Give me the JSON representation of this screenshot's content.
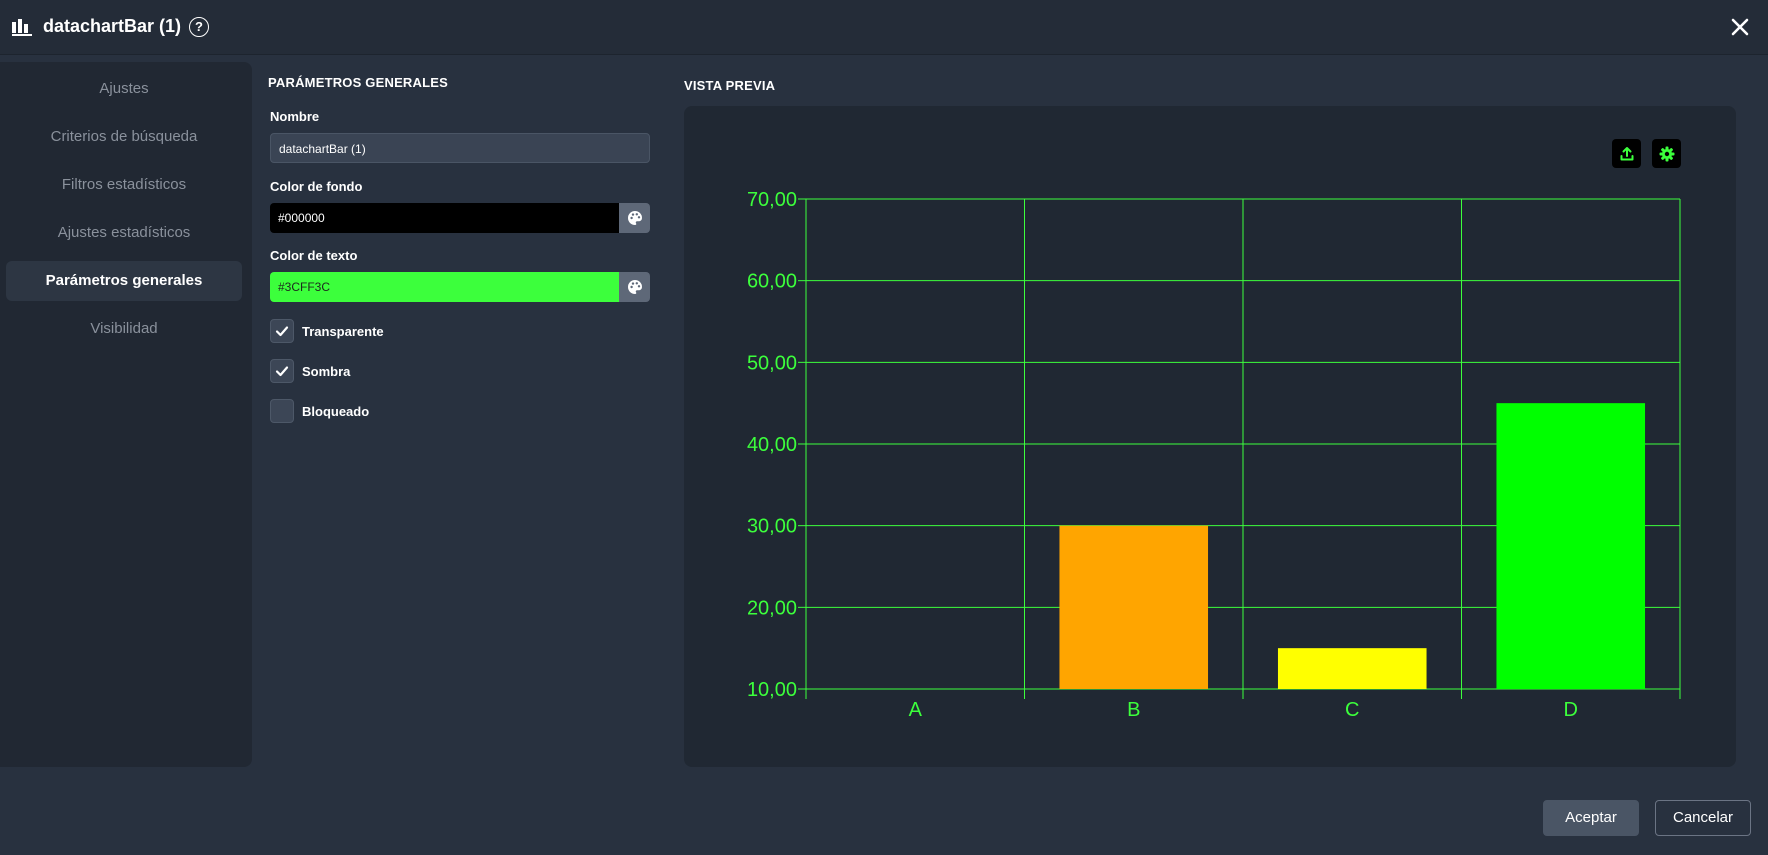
{
  "header": {
    "title": "datachartBar (1)",
    "help_glyph": "?"
  },
  "sidebar": {
    "items": [
      {
        "label": "Ajustes"
      },
      {
        "label": "Criterios de búsqueda"
      },
      {
        "label": "Filtros estadísticos"
      },
      {
        "label": "Ajustes estadísticos"
      },
      {
        "label": "Parámetros generales",
        "active": true
      },
      {
        "label": "Visibilidad"
      }
    ]
  },
  "form": {
    "section_title": "PARÁMETROS GENERALES",
    "name_label": "Nombre",
    "name_value": "datachartBar (1)",
    "bg_color_label": "Color de fondo",
    "bg_color_value": "#000000",
    "text_color_label": "Color de texto",
    "text_color_value": "#3CFF3C",
    "checkboxes": [
      {
        "label": "Transparente",
        "checked": true
      },
      {
        "label": "Sombra",
        "checked": true
      },
      {
        "label": "Bloqueado",
        "checked": false
      }
    ]
  },
  "preview": {
    "title": "VISTA PREVIA"
  },
  "colors": {
    "grid": "#3cff3c",
    "text": "#3cff3c",
    "panel": "#202833"
  },
  "chart_data": {
    "type": "bar",
    "categories": [
      "A",
      "B",
      "C",
      "D"
    ],
    "values": [
      10,
      30,
      15,
      45
    ],
    "bar_colors": [
      "#000000",
      "#ffa500",
      "#ffff00",
      "#00ff00"
    ],
    "ylim": [
      10,
      70
    ],
    "yticks": [
      "10,00",
      "20,00",
      "30,00",
      "40,00",
      "50,00",
      "60,00",
      "70,00"
    ],
    "grid": true,
    "legend": "none",
    "title": "",
    "xlabel": "",
    "ylabel": ""
  },
  "footer": {
    "accept_label": "Aceptar",
    "cancel_label": "Cancelar"
  }
}
